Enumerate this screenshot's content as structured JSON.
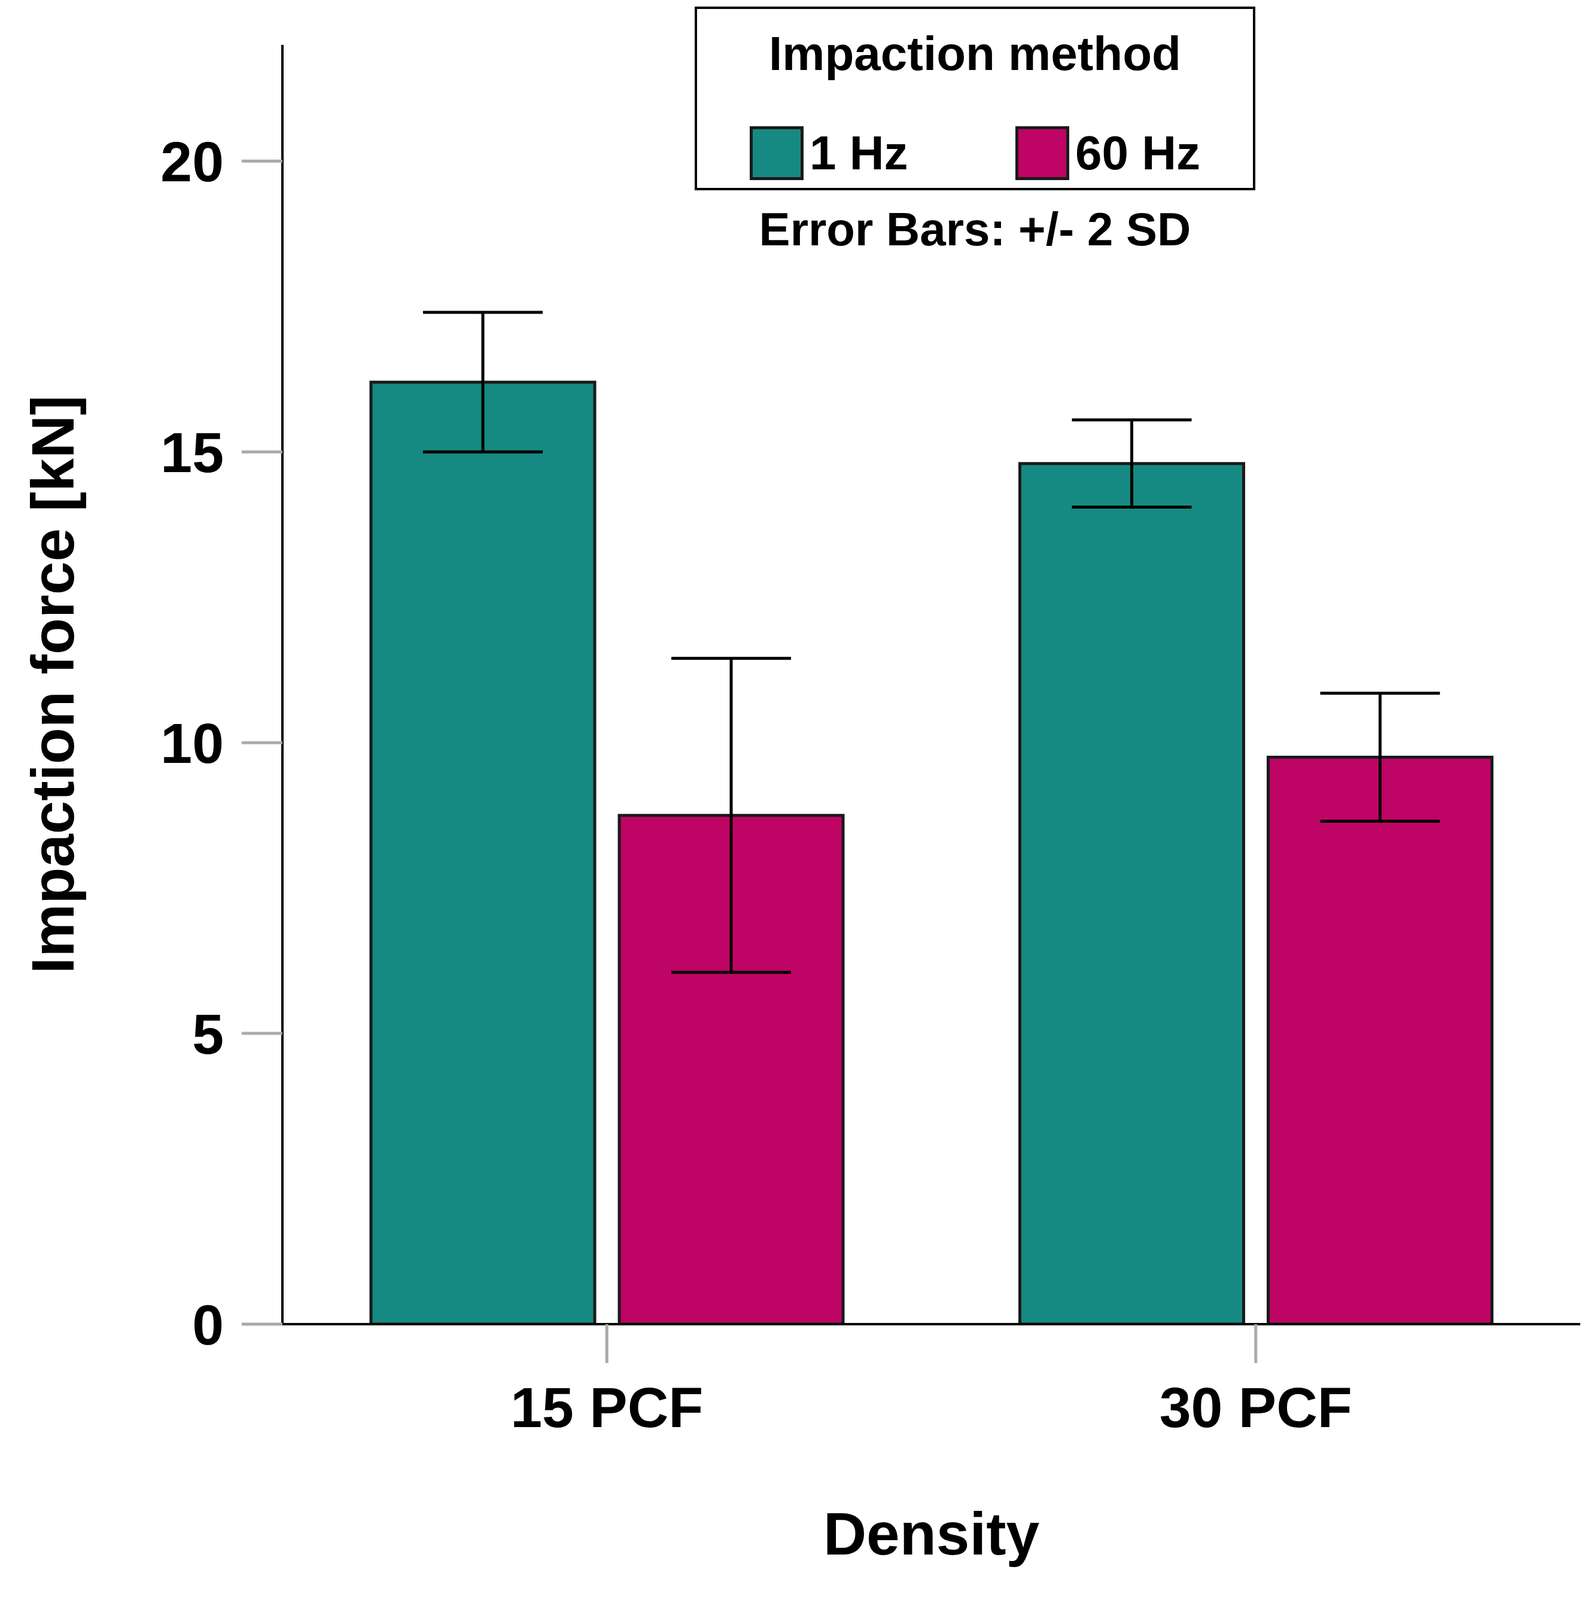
{
  "chart_data": {
    "type": "bar",
    "x_label": "Density",
    "y_label": "Impaction force [kN]",
    "categories": [
      "15 PCF",
      "30 PCF"
    ],
    "series": [
      {
        "name": "1 Hz",
        "color": "#168a82",
        "values": [
          16.2,
          14.8
        ],
        "errors": [
          1.2,
          0.75
        ]
      },
      {
        "name": "60 Hz",
        "color": "#be0464",
        "values": [
          8.75,
          9.75
        ],
        "errors": [
          2.7,
          1.1
        ]
      }
    ],
    "ylim": [
      0,
      22
    ],
    "yticks": [
      0,
      5,
      10,
      15,
      20
    ],
    "legend_title": "Impaction method",
    "annotation": "Error Bars: +/- 2 SD",
    "legend": "top"
  }
}
